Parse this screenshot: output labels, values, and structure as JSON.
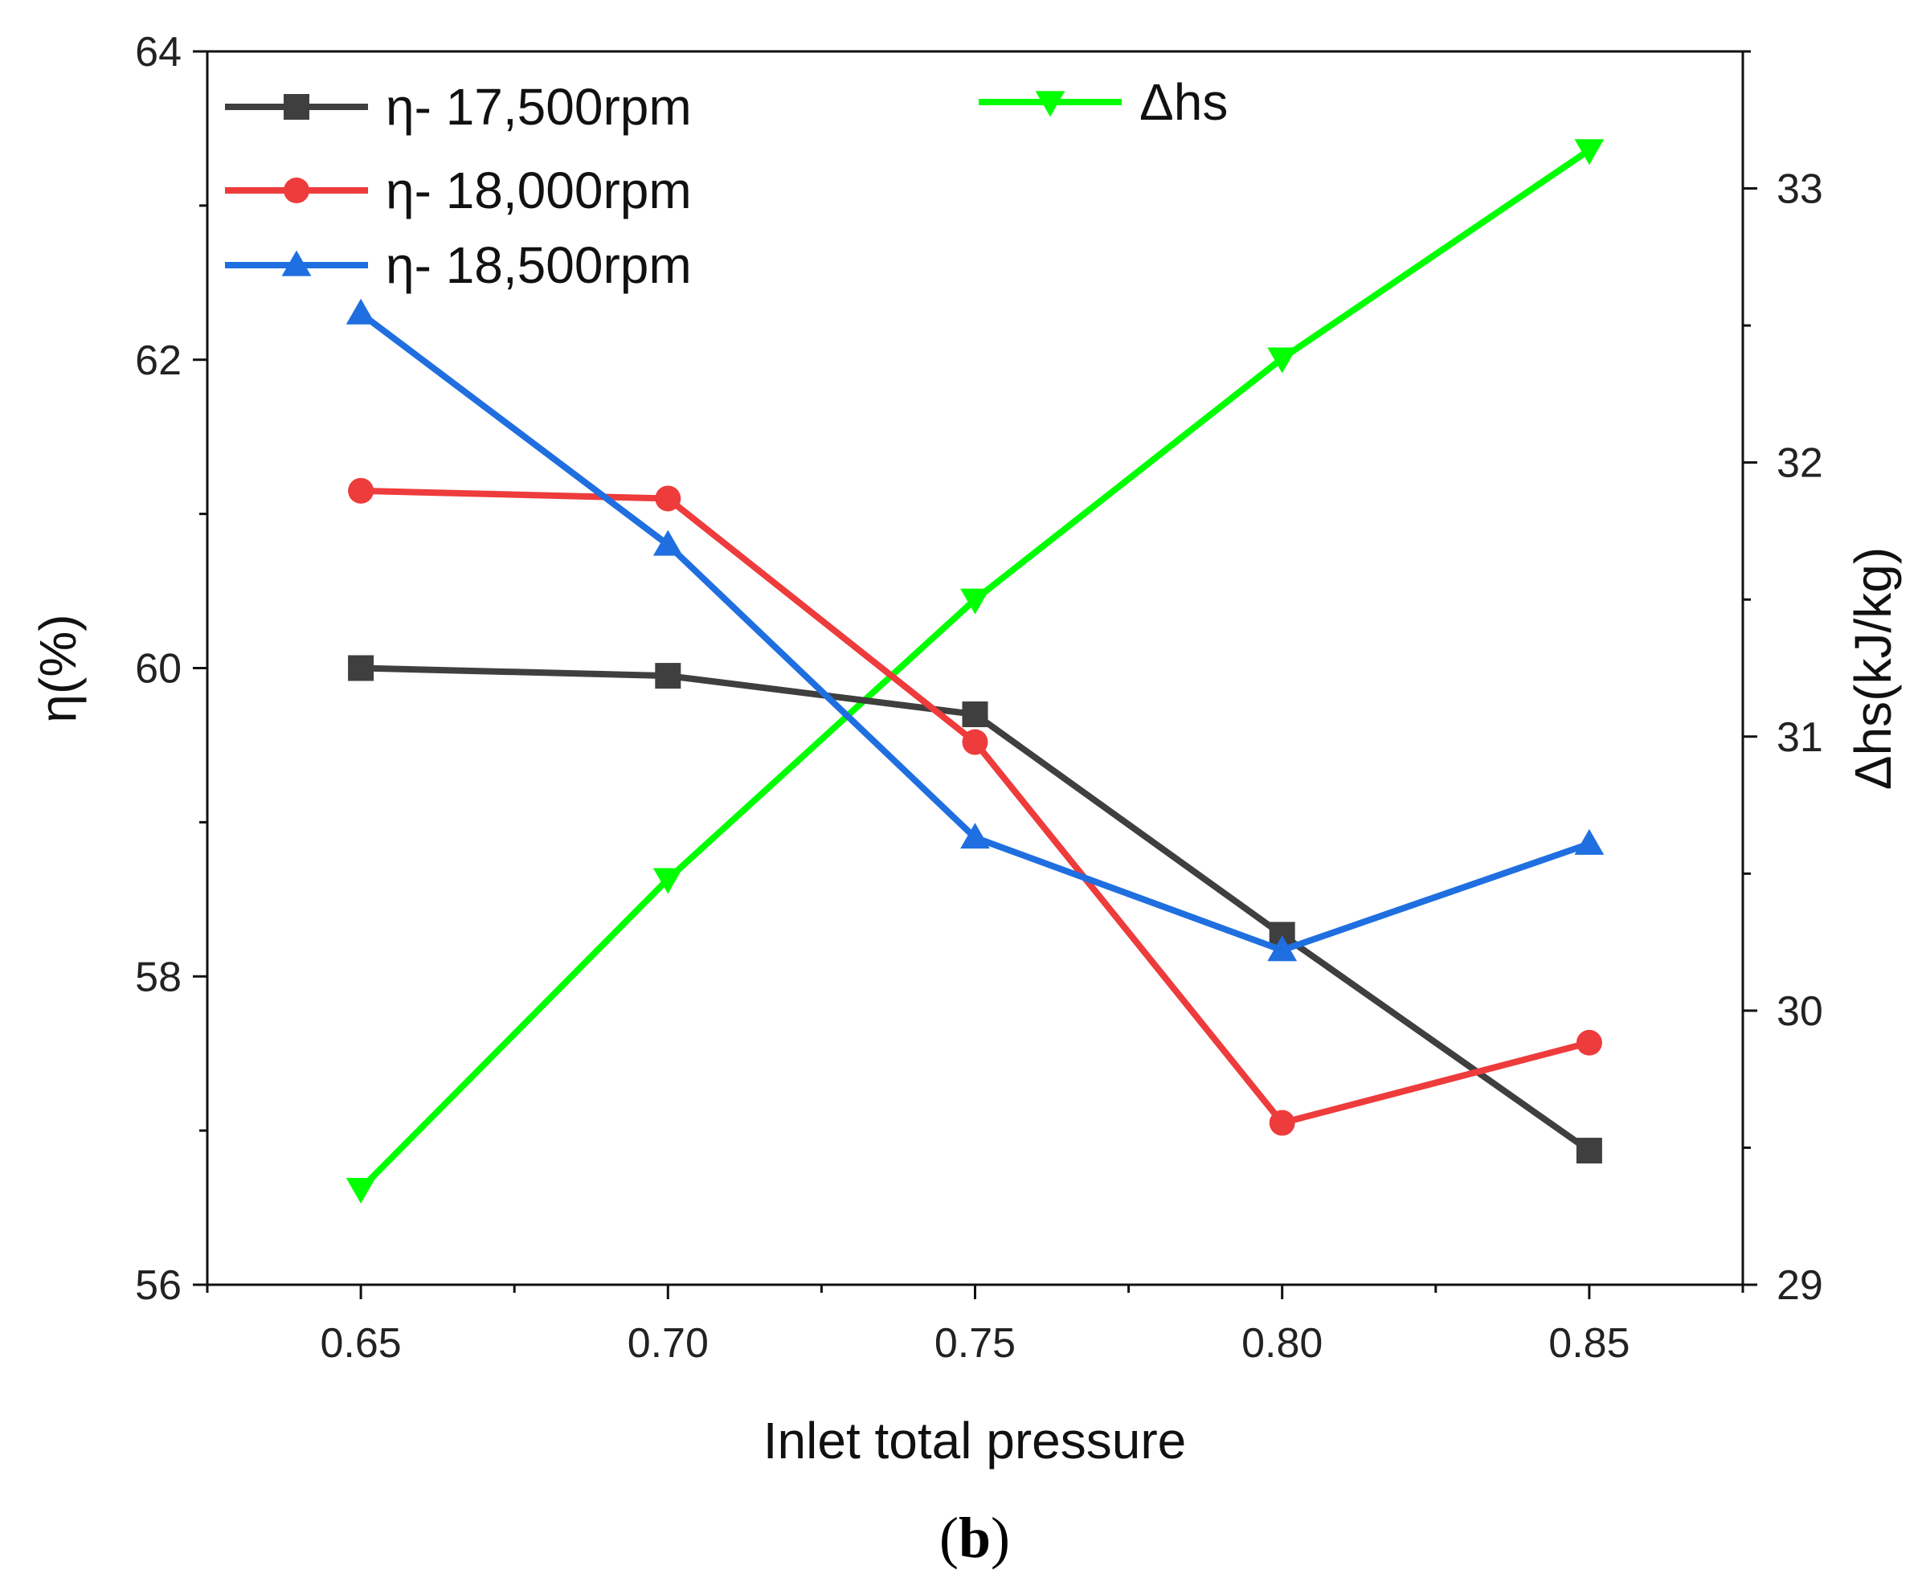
{
  "chart_data": {
    "type": "line",
    "xlabel": "Inlet total pressure",
    "ylabel": "η(%)",
    "y2label": "Δhs(kJ/kg)",
    "caption": {
      "open": "(",
      "letter": "b",
      "close": ")"
    },
    "x": [
      0.65,
      0.7,
      0.75,
      0.8,
      0.85
    ],
    "x_tick_labels": [
      "0.65",
      "0.70",
      "0.75",
      "0.80",
      "0.85"
    ],
    "xlim": [
      0.625,
      0.875
    ],
    "ylim": [
      56,
      64
    ],
    "y_ticks": [
      56,
      58,
      60,
      62,
      64
    ],
    "y2lim": [
      29,
      33.5
    ],
    "y2_ticks": [
      29,
      30,
      31,
      32,
      33
    ],
    "legend_position": "top-left",
    "series": [
      {
        "name": "η- 17,500rpm",
        "axis": "left",
        "color": "#3f3f3f",
        "marker": "square",
        "values": [
          60.0,
          59.95,
          59.7,
          58.27,
          56.87
        ]
      },
      {
        "name": "η- 18,000rpm",
        "axis": "left",
        "color": "#ee3b3b",
        "marker": "circle",
        "values": [
          61.15,
          61.1,
          59.52,
          57.05,
          57.57
        ]
      },
      {
        "name": "η- 18,500rpm",
        "axis": "left",
        "color": "#1f6fe0",
        "marker": "triangle-up",
        "values": [
          62.3,
          60.8,
          58.9,
          58.17,
          58.86
        ]
      },
      {
        "name": "Δhs",
        "axis": "right",
        "color": "#00ff00",
        "marker": "triangle-down",
        "values": [
          29.35,
          30.48,
          31.5,
          32.38,
          33.14
        ]
      }
    ]
  }
}
